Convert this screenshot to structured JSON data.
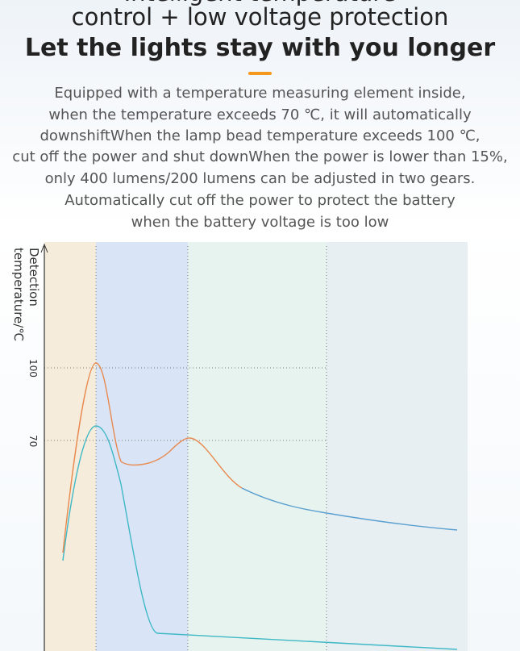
{
  "header": {
    "title_lines": [
      "Intelligent temperature",
      "control + low voltage protection",
      "Let the lights stay with you longer"
    ]
  },
  "description": {
    "lines": [
      "Equipped with a temperature measuring element inside,",
      "when the temperature exceeds 70 ℃, it will automatically",
      "downshiftWhen the lamp bead temperature exceeds 100 ℃,",
      "cut off the power and shut downWhen the power is lower than 15%,",
      "only 400 lumens/200 lumens can be adjusted in two gears.",
      "Automatically cut off the power to protect the battery",
      "when the battery voltage is too low"
    ]
  },
  "chart": {
    "y_label_lines": [
      "Detection",
      "temperature/℃"
    ],
    "ticks": [
      "100",
      "70"
    ]
  }
}
